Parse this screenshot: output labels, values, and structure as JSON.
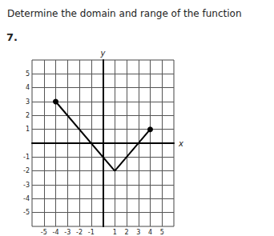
{
  "chart_data": {
    "type": "line",
    "title": "Determine the domain and range of the function",
    "problem_number": "7.",
    "xlabel": "x",
    "ylabel": "y",
    "x": [
      -4,
      1,
      4
    ],
    "values": [
      3,
      -2,
      1
    ],
    "color": "#000000",
    "marker": "endpoints",
    "xlim": [
      -6,
      6
    ],
    "ylim": [
      -6,
      6
    ],
    "xticks": [
      -5,
      -4,
      -3,
      -2,
      -1,
      1,
      2,
      3,
      4,
      5
    ],
    "yticks": [
      -5,
      -4,
      -3,
      -2,
      -1,
      1,
      2,
      3,
      4,
      5
    ],
    "grid": true
  }
}
